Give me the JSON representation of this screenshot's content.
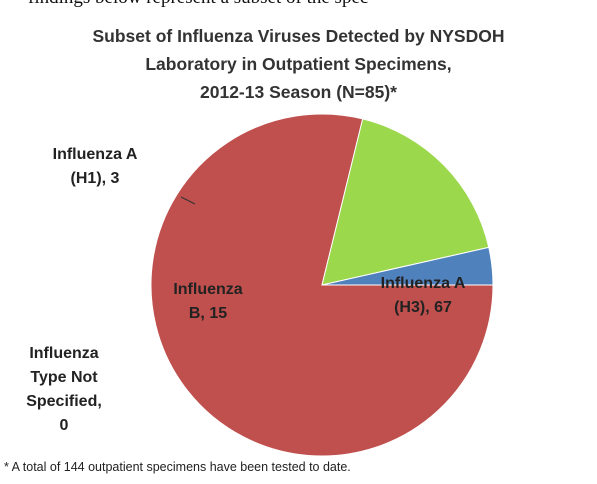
{
  "cropped_text": "findings below represent a subset of the spec",
  "chart_data": {
    "type": "pie",
    "title_lines": [
      "Subset of Influenza Viruses Detected by NYSDOH",
      "Laboratory in Outpatient Specimens,",
      "2012-13 Season (N=85)*"
    ],
    "slices": [
      {
        "name": "Influenza A (H3)",
        "value": 67,
        "color": "#c0504d",
        "label_lines": [
          "Influenza A",
          "(H3), 67"
        ]
      },
      {
        "name": "Influenza B",
        "value": 15,
        "color": "#9bd84c",
        "label_lines": [
          "Influenza",
          "B, 15"
        ]
      },
      {
        "name": "Influenza A (H1)",
        "value": 3,
        "color": "#4f81bd",
        "label_lines": [
          "Influenza A",
          "(H1), 3"
        ]
      },
      {
        "name": "Influenza Type Not Specified",
        "value": 0,
        "color": "#f79646",
        "label_lines": [
          "Influenza",
          "Type Not",
          "Specified,",
          "0"
        ]
      }
    ],
    "footnote": "* A total of 144 outpatient specimens have been tested to date."
  }
}
